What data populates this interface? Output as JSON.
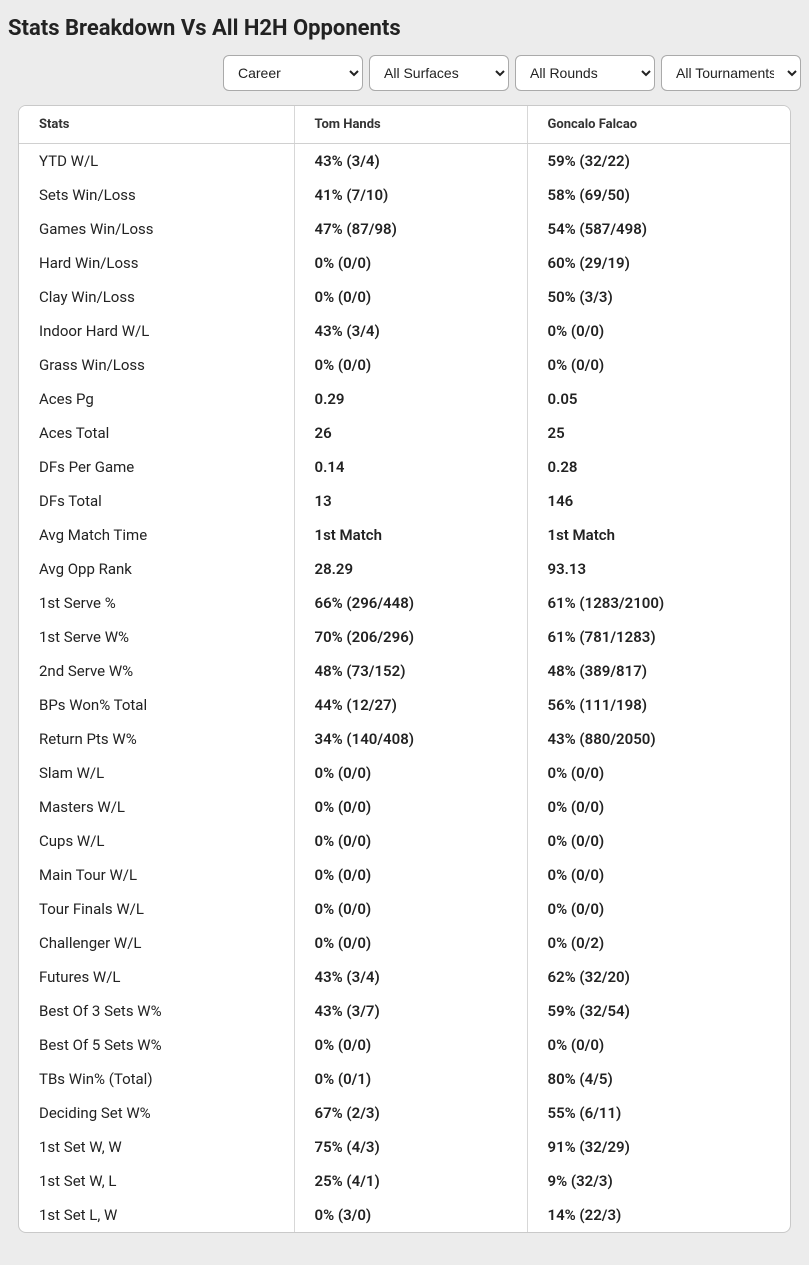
{
  "title": "Stats Breakdown Vs All H2H Opponents",
  "filters": {
    "career": "Career",
    "surfaces": "All Surfaces",
    "rounds": "All Rounds",
    "tournaments": "All Tournaments"
  },
  "table": {
    "columns": [
      "Stats",
      "Tom Hands",
      "Goncalo Falcao"
    ],
    "rows": [
      [
        "YTD W/L",
        "43% (3/4)",
        "59% (32/22)"
      ],
      [
        "Sets Win/Loss",
        "41% (7/10)",
        "58% (69/50)"
      ],
      [
        "Games Win/Loss",
        "47% (87/98)",
        "54% (587/498)"
      ],
      [
        "Hard Win/Loss",
        "0% (0/0)",
        "60% (29/19)"
      ],
      [
        "Clay Win/Loss",
        "0% (0/0)",
        "50% (3/3)"
      ],
      [
        "Indoor Hard W/L",
        "43% (3/4)",
        "0% (0/0)"
      ],
      [
        "Grass Win/Loss",
        "0% (0/0)",
        "0% (0/0)"
      ],
      [
        "Aces Pg",
        "0.29",
        "0.05"
      ],
      [
        "Aces Total",
        "26",
        "25"
      ],
      [
        "DFs Per Game",
        "0.14",
        "0.28"
      ],
      [
        "DFs Total",
        "13",
        "146"
      ],
      [
        "Avg Match Time",
        "1st Match",
        "1st Match"
      ],
      [
        "Avg Opp Rank",
        "28.29",
        "93.13"
      ],
      [
        "1st Serve %",
        "66% (296/448)",
        "61% (1283/2100)"
      ],
      [
        "1st Serve W%",
        "70% (206/296)",
        "61% (781/1283)"
      ],
      [
        "2nd Serve W%",
        "48% (73/152)",
        "48% (389/817)"
      ],
      [
        "BPs Won% Total",
        "44% (12/27)",
        "56% (111/198)"
      ],
      [
        "Return Pts W%",
        "34% (140/408)",
        "43% (880/2050)"
      ],
      [
        "Slam W/L",
        "0% (0/0)",
        "0% (0/0)"
      ],
      [
        "Masters W/L",
        "0% (0/0)",
        "0% (0/0)"
      ],
      [
        "Cups W/L",
        "0% (0/0)",
        "0% (0/0)"
      ],
      [
        "Main Tour W/L",
        "0% (0/0)",
        "0% (0/0)"
      ],
      [
        "Tour Finals W/L",
        "0% (0/0)",
        "0% (0/0)"
      ],
      [
        "Challenger W/L",
        "0% (0/0)",
        "0% (0/2)"
      ],
      [
        "Futures W/L",
        "43% (3/4)",
        "62% (32/20)"
      ],
      [
        "Best Of 3 Sets W%",
        "43% (3/7)",
        "59% (32/54)"
      ],
      [
        "Best Of 5 Sets W%",
        "0% (0/0)",
        "0% (0/0)"
      ],
      [
        "TBs Win% (Total)",
        "0% (0/1)",
        "80% (4/5)"
      ],
      [
        "Deciding Set W%",
        "67% (2/3)",
        "55% (6/11)"
      ],
      [
        "1st Set W, W",
        "75% (4/3)",
        "91% (32/29)"
      ],
      [
        "1st Set W, L",
        "25% (4/1)",
        "9% (32/3)"
      ],
      [
        "1st Set L, W",
        "0% (3/0)",
        "14% (22/3)"
      ]
    ]
  },
  "styling": {
    "background_color": "#ececec",
    "table_background": "#ffffff",
    "table_border_color": "#c9c9c9",
    "column_divider_color": "#d7d7d7",
    "header_text_color": "#333333",
    "stat_label_color": "#222222",
    "value_text_color": "#222222",
    "title_fontsize": 22,
    "header_fontsize": 13,
    "cell_fontsize": 15,
    "select_border_color": "#aaaaaa",
    "border_radius": 8
  }
}
